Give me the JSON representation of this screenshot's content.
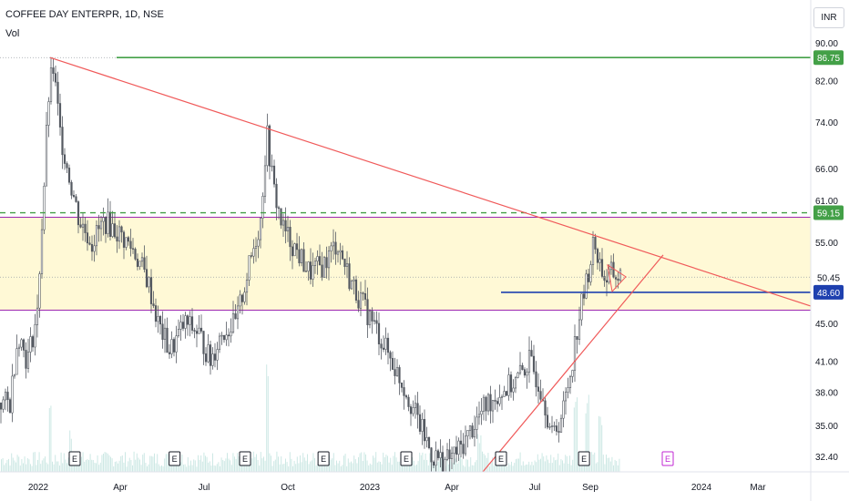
{
  "header": {
    "symbol_title": "COFFEE DAY ENTERPR, 1D, NSE",
    "indicator_label": "Vol",
    "currency_button": "INR"
  },
  "colors": {
    "band_fill": "#fff9d6",
    "band_line": "#9c27b0",
    "resistance_line": "#43a047",
    "trendline": "#f05a5a",
    "support_line": "#1e40af",
    "candle": "#555a62",
    "volume": "#cde8e4",
    "price_label_green": "#43a047",
    "price_label_blue": "#1e40af",
    "earnings_future": "#c026d3"
  },
  "chart_data": {
    "type": "candlestick",
    "title": "COFFEE DAY ENTERPR, 1D, NSE",
    "y_scale": "log",
    "ylim": [
      31.2,
      100
    ],
    "y_ticks": [
      "90.00",
      "82.00",
      "74.00",
      "66.00",
      "61.00",
      "55.00",
      "45.00",
      "41.00",
      "38.00",
      "35.00",
      "32.40"
    ],
    "x_ticks": [
      "2022",
      "Apr",
      "Jul",
      "Oct",
      "2023",
      "Apr",
      "Jul",
      "Sep",
      "2024",
      "Mar"
    ],
    "price_labels": [
      {
        "value": "86.75",
        "style": "green"
      },
      {
        "value": "59.15",
        "style": "green"
      },
      {
        "value": "50.45",
        "style": "plain"
      },
      {
        "value": "48.60",
        "style": "blue"
      }
    ],
    "horizontal_levels": [
      {
        "price": 86.75,
        "style": "solid-green"
      },
      {
        "price": 59.15,
        "style": "dashed-green"
      },
      {
        "price": 48.6,
        "style": "solid-blue"
      },
      {
        "price": 50.45,
        "style": "dotted-last-price"
      }
    ],
    "zone": {
      "from": 46.5,
      "to": 58.5
    },
    "price_path": [
      [
        "2021-12-01",
        37
      ],
      [
        "2021-12-10",
        44
      ],
      [
        "2021-12-20",
        41
      ],
      [
        "2021-12-31",
        46
      ],
      [
        "2022-01-07",
        62
      ],
      [
        "2022-01-12",
        78
      ],
      [
        "2022-01-17",
        85
      ],
      [
        "2022-01-25",
        72
      ],
      [
        "2022-02-05",
        64
      ],
      [
        "2022-02-15",
        58
      ],
      [
        "2022-03-01",
        55
      ],
      [
        "2022-03-15",
        58
      ],
      [
        "2022-04-01",
        56
      ],
      [
        "2022-04-15",
        54
      ],
      [
        "2022-05-01",
        50
      ],
      [
        "2022-05-12",
        45
      ],
      [
        "2022-05-25",
        42
      ],
      [
        "2022-06-10",
        45
      ],
      [
        "2022-06-25",
        44
      ],
      [
        "2022-07-08",
        41
      ],
      [
        "2022-07-20",
        44
      ],
      [
        "2022-08-05",
        45
      ],
      [
        "2022-08-20",
        52
      ],
      [
        "2022-09-01",
        58
      ],
      [
        "2022-09-08",
        72
      ],
      [
        "2022-09-15",
        63
      ],
      [
        "2022-09-25",
        57
      ],
      [
        "2022-10-10",
        54
      ],
      [
        "2022-10-25",
        51
      ],
      [
        "2022-11-10",
        52
      ],
      [
        "2022-11-25",
        55
      ],
      [
        "2022-12-10",
        50
      ],
      [
        "2022-12-25",
        47
      ],
      [
        "2023-01-10",
        44
      ],
      [
        "2023-01-25",
        41
      ],
      [
        "2023-02-10",
        38
      ],
      [
        "2023-02-25",
        35
      ],
      [
        "2023-03-10",
        32.5
      ],
      [
        "2023-03-25",
        32
      ],
      [
        "2023-04-10",
        33
      ],
      [
        "2023-04-25",
        35
      ],
      [
        "2023-05-10",
        37
      ],
      [
        "2023-05-25",
        38
      ],
      [
        "2023-06-10",
        39
      ],
      [
        "2023-06-25",
        41
      ],
      [
        "2023-07-10",
        38
      ],
      [
        "2023-07-20",
        34
      ],
      [
        "2023-08-01",
        36
      ],
      [
        "2023-08-10",
        40
      ],
      [
        "2023-08-20",
        46
      ],
      [
        "2023-08-28",
        50
      ],
      [
        "2023-09-05",
        55
      ],
      [
        "2023-09-12",
        52
      ],
      [
        "2023-09-18",
        50
      ],
      [
        "2023-09-25",
        51
      ],
      [
        "2023-10-02",
        50.45
      ]
    ],
    "trendlines": [
      {
        "color": "red",
        "from": [
          "2022-01-14",
          86.75
        ],
        "to": [
          "2024-05-01",
          46.8
        ]
      },
      {
        "color": "red",
        "from": [
          "2023-05-05",
          31.2
        ],
        "to": [
          "2023-11-20",
          53.3
        ]
      }
    ],
    "triangle_pattern": [
      [
        "2023-09-20",
        52
      ],
      [
        "2023-10-10",
        50.5
      ],
      [
        "2023-09-25",
        48.7
      ]
    ],
    "earnings_markers": [
      {
        "date": "2022-02-10",
        "label": "E"
      },
      {
        "date": "2022-05-30",
        "label": "E"
      },
      {
        "date": "2022-08-15",
        "label": "E"
      },
      {
        "date": "2022-11-10",
        "label": "E"
      },
      {
        "date": "2023-02-10",
        "label": "E"
      },
      {
        "date": "2023-05-25",
        "label": "E"
      },
      {
        "date": "2023-08-25",
        "label": "E"
      },
      {
        "date": "2023-11-25",
        "label": "E",
        "future": true
      }
    ],
    "volume_spikes": [
      {
        "date": "2022-01-14",
        "volume": 0.6
      },
      {
        "date": "2022-02-05",
        "volume": 0.35
      },
      {
        "date": "2022-09-08",
        "volume": 0.9
      },
      {
        "date": "2023-05-01",
        "volume": 0.3
      },
      {
        "date": "2023-08-15",
        "volume": 0.7
      },
      {
        "date": "2023-08-28",
        "volume": 0.65
      },
      {
        "date": "2023-09-12",
        "volume": 0.45
      }
    ]
  }
}
